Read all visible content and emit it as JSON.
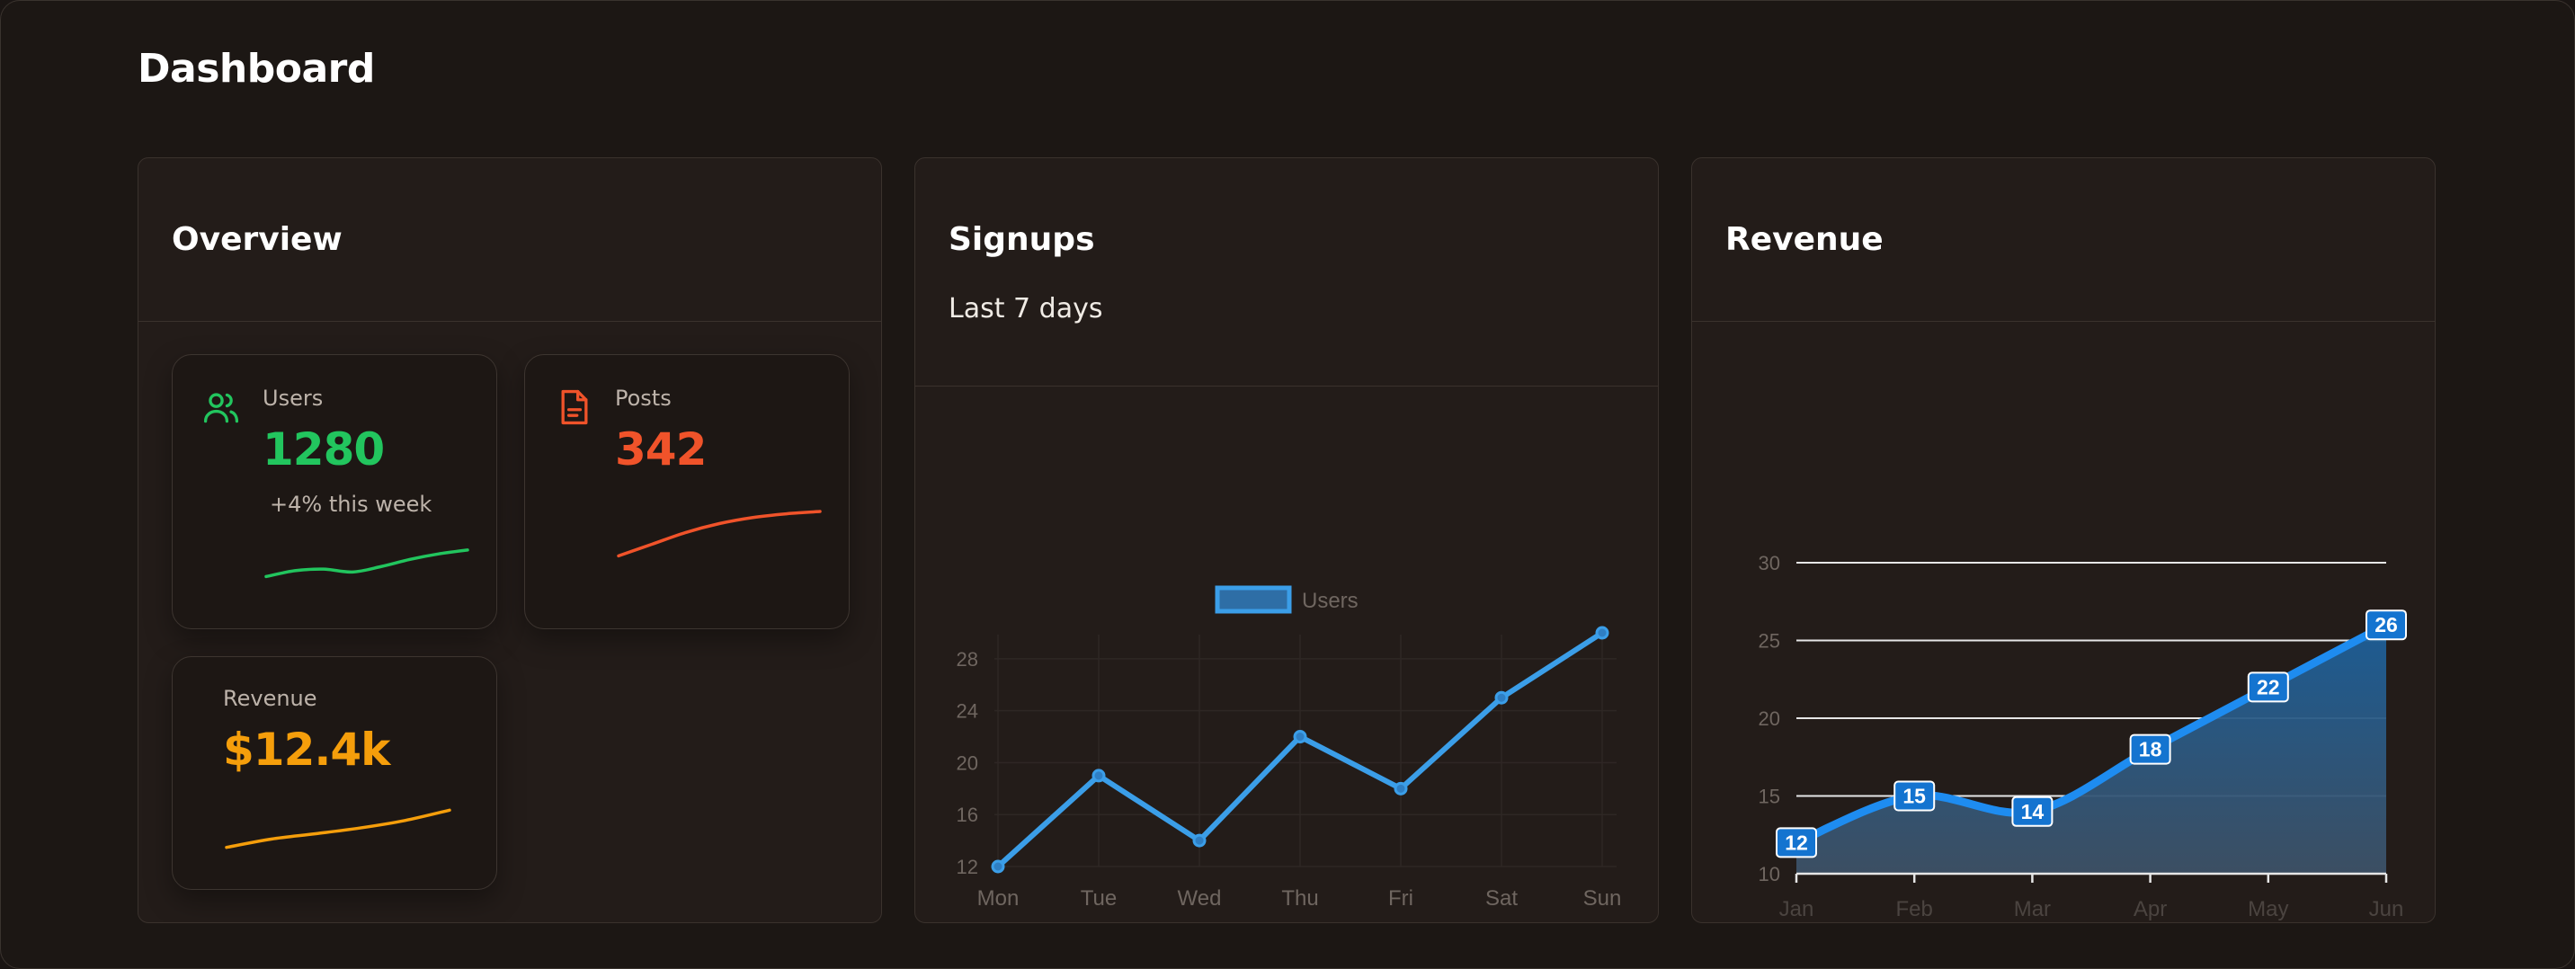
{
  "page": {
    "title": "Dashboard"
  },
  "overview": {
    "title": "Overview",
    "cards": [
      {
        "label": "Users",
        "value": "1280",
        "note": "+4% this week",
        "icon": "users-icon",
        "color": "#22c55e",
        "trend": [
          0.1,
          0.28,
          0.33,
          0.24,
          0.41,
          0.63,
          0.8,
          0.92
        ]
      },
      {
        "label": "Posts",
        "value": "342",
        "icon": "document-icon",
        "color": "#f0532a",
        "trend": [
          0.05,
          0.3,
          0.55,
          0.74,
          0.87,
          0.95,
          1.0
        ]
      },
      {
        "label": "Revenue",
        "value": "$12.4k",
        "color": "#f59e0b",
        "trend": [
          0.05,
          0.25,
          0.38,
          0.52,
          0.7,
          0.95
        ]
      }
    ]
  },
  "signups": {
    "title": "Signups",
    "subtitle": "Last 7 days",
    "chart_data": {
      "type": "line",
      "categories": [
        "Mon",
        "Tue",
        "Wed",
        "Thu",
        "Fri",
        "Sat",
        "Sun"
      ],
      "series": [
        {
          "name": "Users",
          "values": [
            12,
            19,
            14,
            22,
            18,
            25,
            30
          ],
          "color": "#3b9ee8"
        }
      ],
      "yticks": [
        12,
        16,
        20,
        24,
        28
      ],
      "ylim": [
        12,
        30
      ],
      "grid": true,
      "legend_position": "top"
    }
  },
  "revenue": {
    "title": "Revenue",
    "chart_data": {
      "type": "area",
      "categories": [
        "Jan",
        "Feb",
        "Mar",
        "Apr",
        "May",
        "Jun"
      ],
      "values": [
        12,
        15,
        14,
        18,
        22,
        26
      ],
      "yticks": [
        10,
        15,
        20,
        25,
        30
      ],
      "ylim": [
        10,
        30
      ],
      "grid": true,
      "data_labels": true,
      "color": "#1e8cf0"
    }
  }
}
